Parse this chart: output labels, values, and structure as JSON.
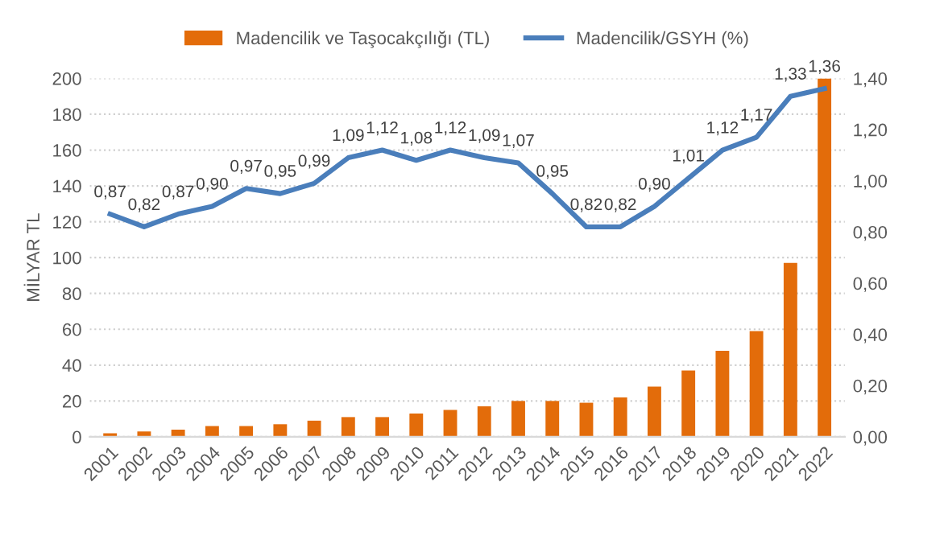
{
  "chart_data": {
    "type": "bar",
    "categories": [
      "2001",
      "2002",
      "2003",
      "2004",
      "2005",
      "2006",
      "2007",
      "2008",
      "2009",
      "2010",
      "2011",
      "2012",
      "2013",
      "2014",
      "2015",
      "2016",
      "2017",
      "2018",
      "2019",
      "2020",
      "2021",
      "2022"
    ],
    "ylabel": "MİLYAR TL",
    "ylim": [
      0,
      200
    ],
    "yticks": [
      0,
      20,
      40,
      60,
      80,
      100,
      120,
      140,
      160,
      180,
      200
    ],
    "y2lim": [
      0,
      1.4
    ],
    "y2ticks": [
      {
        "value": 0,
        "label": "0,00"
      },
      {
        "value": 0.2,
        "label": "0,20"
      },
      {
        "value": 0.4,
        "label": "0,40"
      },
      {
        "value": 0.6,
        "label": "0,60"
      },
      {
        "value": 0.8,
        "label": "0,80"
      },
      {
        "value": 1.0,
        "label": "1,00"
      },
      {
        "value": 1.2,
        "label": "1,20"
      },
      {
        "value": 1.4,
        "label": "1,40"
      }
    ],
    "grid": "y",
    "legend": "top",
    "series": [
      {
        "name": "Madencilik ve Taşocakçılığı (TL)",
        "color": "#e36c0a",
        "values": [
          2,
          3,
          4,
          6,
          6,
          7,
          9,
          11,
          11,
          13,
          15,
          17,
          20,
          20,
          19,
          22,
          28,
          37,
          48,
          59,
          97,
          200
        ]
      },
      {
        "name": "Madencilik/GSYH (%)",
        "type": "line",
        "axis": "y2",
        "color": "#4a7ebb",
        "values": [
          0.87,
          0.82,
          0.87,
          0.9,
          0.97,
          0.95,
          0.99,
          1.09,
          1.12,
          1.08,
          1.12,
          1.09,
          1.07,
          0.95,
          0.82,
          0.82,
          0.9,
          1.01,
          1.12,
          1.17,
          1.33,
          1.36
        ],
        "value_labels": [
          "0,87",
          "0,82",
          "0,87",
          "0,90",
          "0,97",
          "0,95",
          "0,99",
          "1,09",
          "1,12",
          "1,08",
          "1,12",
          "1,09",
          "1,07",
          "0,95",
          "0,82",
          "0,82",
          "0,90",
          "1,01",
          "1,12",
          "1,17",
          "1,33",
          "1,36"
        ]
      }
    ]
  }
}
